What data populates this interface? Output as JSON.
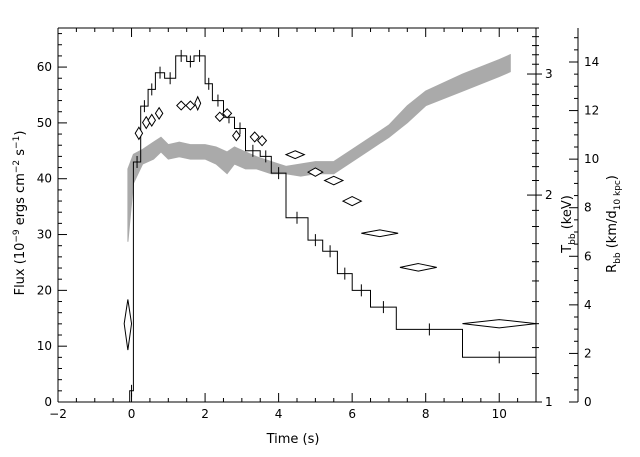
{
  "chart_data": {
    "type": "line",
    "title": "",
    "xlabel": "Time (s)",
    "ylabel_left": {
      "main": "Flux (10",
      "exp1": "−9",
      "mid": " ergs cm",
      "exp2": "−2",
      "mid2": " s",
      "exp3": "−1",
      "end": ")"
    },
    "ylabel_right_inner": {
      "main": "T",
      "sub": "bb",
      "end": " (keV)"
    },
    "ylabel_right_outer": {
      "main": "R",
      "sub": "bb",
      "mid": " (km/d",
      "sub2": "10 kpc",
      "end": ")"
    },
    "xlim": [
      -2,
      11
    ],
    "ylim_flux": [
      0,
      67
    ],
    "ylim_temp_log": [
      1,
      3.5
    ],
    "ylim_radius": [
      0,
      15.4
    ],
    "x_ticks": [
      -2,
      0,
      2,
      4,
      6,
      8,
      10
    ],
    "flux_ticks": [
      0,
      10,
      20,
      30,
      40,
      50,
      60
    ],
    "temp_ticks_major": [
      1,
      2,
      3
    ],
    "radius_ticks": [
      0,
      2,
      4,
      6,
      8,
      10,
      12,
      14
    ],
    "tick_labels": {
      "x": [
        "−2",
        "0",
        "2",
        "4",
        "6",
        "8",
        "10"
      ],
      "flux": [
        "0",
        "10",
        "20",
        "30",
        "40",
        "50",
        "60"
      ],
      "temp": [
        "1",
        "2",
        "3"
      ],
      "radius": [
        "0",
        "2",
        "4",
        "6",
        "8",
        "10",
        "12",
        "14"
      ]
    },
    "series": [
      {
        "kind": "flux_histogram",
        "bins": [
          {
            "x0": -0.05,
            "x1": 0.05,
            "y": 2
          },
          {
            "x0": 0.05,
            "x1": 0.25,
            "y": 43
          },
          {
            "x0": 0.25,
            "x1": 0.45,
            "y": 53
          },
          {
            "x0": 0.45,
            "x1": 0.65,
            "y": 56
          },
          {
            "x0": 0.65,
            "x1": 0.9,
            "y": 59
          },
          {
            "x0": 0.9,
            "x1": 1.2,
            "y": 58
          },
          {
            "x0": 1.2,
            "x1": 1.5,
            "y": 62
          },
          {
            "x0": 1.5,
            "x1": 1.7,
            "y": 61
          },
          {
            "x0": 1.7,
            "x1": 2.0,
            "y": 62
          },
          {
            "x0": 2.0,
            "x1": 2.2,
            "y": 57
          },
          {
            "x0": 2.2,
            "x1": 2.5,
            "y": 54
          },
          {
            "x0": 2.5,
            "x1": 2.8,
            "y": 51
          },
          {
            "x0": 2.8,
            "x1": 3.1,
            "y": 49
          },
          {
            "x0": 3.1,
            "x1": 3.5,
            "y": 45
          },
          {
            "x0": 3.5,
            "x1": 3.8,
            "y": 44
          },
          {
            "x0": 3.8,
            "x1": 4.2,
            "y": 41
          },
          {
            "x0": 4.2,
            "x1": 4.8,
            "y": 33
          },
          {
            "x0": 4.8,
            "x1": 5.2,
            "y": 29
          },
          {
            "x0": 5.2,
            "x1": 5.6,
            "y": 27
          },
          {
            "x0": 5.6,
            "x1": 6.0,
            "y": 23
          },
          {
            "x0": 6.0,
            "x1": 6.5,
            "y": 20
          },
          {
            "x0": 6.5,
            "x1": 7.2,
            "y": 17
          },
          {
            "x0": 7.2,
            "x1": 9.0,
            "y": 13
          },
          {
            "x0": 9.0,
            "x1": 11.0,
            "y": 8
          }
        ]
      },
      {
        "kind": "radius_band",
        "color": "#aaaaaa",
        "x": [
          -0.1,
          0.05,
          0.3,
          0.6,
          0.8,
          1.0,
          1.3,
          1.6,
          2.0,
          2.3,
          2.6,
          2.8,
          3.1,
          3.4,
          3.8,
          4.2,
          4.6,
          5.0,
          5.5,
          6.0,
          6.5,
          7.0,
          7.5,
          8.0,
          9.0,
          10.0,
          10.3
        ],
        "lo": [
          6.6,
          9.0,
          9.8,
          10.0,
          10.3,
          10.0,
          10.1,
          10.0,
          10.0,
          9.8,
          9.4,
          9.8,
          9.6,
          9.6,
          9.4,
          9.4,
          9.3,
          9.4,
          9.4,
          9.9,
          10.4,
          10.9,
          11.5,
          12.2,
          12.8,
          13.4,
          13.6
        ],
        "hi": [
          9.6,
          10.2,
          10.4,
          10.7,
          10.9,
          10.6,
          10.7,
          10.6,
          10.6,
          10.5,
          10.3,
          10.5,
          10.3,
          10.1,
          9.9,
          9.7,
          9.8,
          9.9,
          9.9,
          10.4,
          10.9,
          11.4,
          12.2,
          12.8,
          13.5,
          14.1,
          14.3
        ]
      },
      {
        "kind": "temperature_diamonds",
        "points": [
          {
            "t": -0.1,
            "dt": 0.1,
            "T": 1.3,
            "dT": 0.11
          },
          {
            "t": 0.2,
            "dt": 0.1,
            "T": 2.46,
            "dT": 0.05
          },
          {
            "t": 0.4,
            "dt": 0.1,
            "T": 2.55,
            "dT": 0.05
          },
          {
            "t": 0.55,
            "dt": 0.1,
            "T": 2.57,
            "dT": 0.05
          },
          {
            "t": 0.75,
            "dt": 0.1,
            "T": 2.63,
            "dT": 0.05
          },
          {
            "t": 1.35,
            "dt": 0.12,
            "T": 2.7,
            "dT": 0.04
          },
          {
            "t": 1.6,
            "dt": 0.12,
            "T": 2.7,
            "dT": 0.04
          },
          {
            "t": 1.8,
            "dt": 0.08,
            "T": 2.72,
            "dT": 0.06
          },
          {
            "t": 2.4,
            "dt": 0.12,
            "T": 2.6,
            "dT": 0.04
          },
          {
            "t": 2.6,
            "dt": 0.12,
            "T": 2.63,
            "dT": 0.04
          },
          {
            "t": 2.85,
            "dt": 0.1,
            "T": 2.44,
            "dT": 0.04
          },
          {
            "t": 3.35,
            "dt": 0.12,
            "T": 2.43,
            "dT": 0.04
          },
          {
            "t": 3.55,
            "dt": 0.12,
            "T": 2.4,
            "dT": 0.04
          },
          {
            "t": 4.45,
            "dt": 0.25,
            "T": 2.29,
            "dT": 0.03
          },
          {
            "t": 5.0,
            "dt": 0.2,
            "T": 2.16,
            "dT": 0.03
          },
          {
            "t": 5.5,
            "dt": 0.25,
            "T": 2.1,
            "dT": 0.03
          },
          {
            "t": 6.0,
            "dt": 0.25,
            "T": 1.96,
            "dT": 0.03
          },
          {
            "t": 6.75,
            "dt": 0.5,
            "T": 1.76,
            "dT": 0.02
          },
          {
            "t": 7.8,
            "dt": 0.5,
            "T": 1.57,
            "dT": 0.02
          },
          {
            "t": 10.0,
            "dt": 1.0,
            "T": 1.3,
            "dT": 0.018
          }
        ]
      }
    ]
  }
}
